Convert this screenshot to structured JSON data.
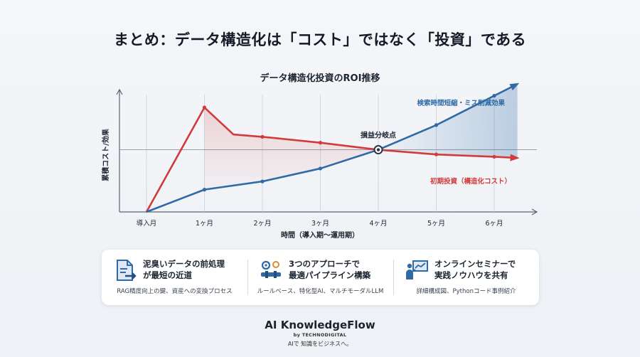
{
  "headline": "まとめ：データ構造化は「コスト」ではなく「投資」である",
  "chart_data": {
    "type": "line",
    "title": "データ構造化投資のROI推移",
    "xlabel": "時間（導入期〜運用期）",
    "ylabel": "累積コスト/効果",
    "categories": [
      "導入月",
      "1ヶ月",
      "2ヶ月",
      "3ヶ月",
      "4ヶ月",
      "5ヶ月",
      "6ヶ月"
    ],
    "ylim": [
      0,
      10
    ],
    "grid": true,
    "series": [
      {
        "name": "初期投資（構造化コスト）",
        "color": "#d23b3b",
        "points": [
          [
            0,
            0
          ],
          [
            1,
            8.9
          ],
          [
            1.5,
            6.6
          ],
          [
            2,
            6.4
          ],
          [
            3,
            5.9
          ],
          [
            4,
            5.3
          ],
          [
            5,
            4.9
          ],
          [
            6,
            4.7
          ],
          [
            6.4,
            4.6
          ]
        ]
      },
      {
        "name": "検索時間短縮・ミス削減効果",
        "color": "#2f6aa6",
        "points": [
          [
            0,
            0
          ],
          [
            1,
            1.9
          ],
          [
            2,
            2.6
          ],
          [
            3,
            3.7
          ],
          [
            4,
            5.3
          ],
          [
            5,
            7.4
          ],
          [
            6,
            9.9
          ],
          [
            6.4,
            10.9
          ]
        ]
      }
    ],
    "annotations": [
      {
        "text": "損益分岐点",
        "x": 4,
        "y": 5.3
      }
    ]
  },
  "features": [
    {
      "icon": "document-arrow-icon",
      "title_line1": "泥臭いデータの前処理",
      "title_line2": "が最短の近道",
      "subtitle": "RAG精度向上の鍵、資産への変換プロセス"
    },
    {
      "icon": "pipeline-gear-icon",
      "title_line1": "3つのアプローチで",
      "title_line2": "最適パイプライン構築",
      "subtitle": "ルールベース、特化型AI、マルチモーダルLLM"
    },
    {
      "icon": "presenter-board-icon",
      "title_line1": "オンラインセミナーで",
      "title_line2": "実践ノウハウを共有",
      "subtitle": "詳細構成図、Pythonコード事例紹介"
    }
  ],
  "brand": {
    "name": "AI KnowledgeFlow",
    "by": "by TECHNODIGITAL",
    "tagline": "AIで 知識をビジネスへ。"
  },
  "colors": {
    "cost": "#d23b3b",
    "benefit": "#2f6aa6",
    "accent": "#2f6aa6"
  }
}
